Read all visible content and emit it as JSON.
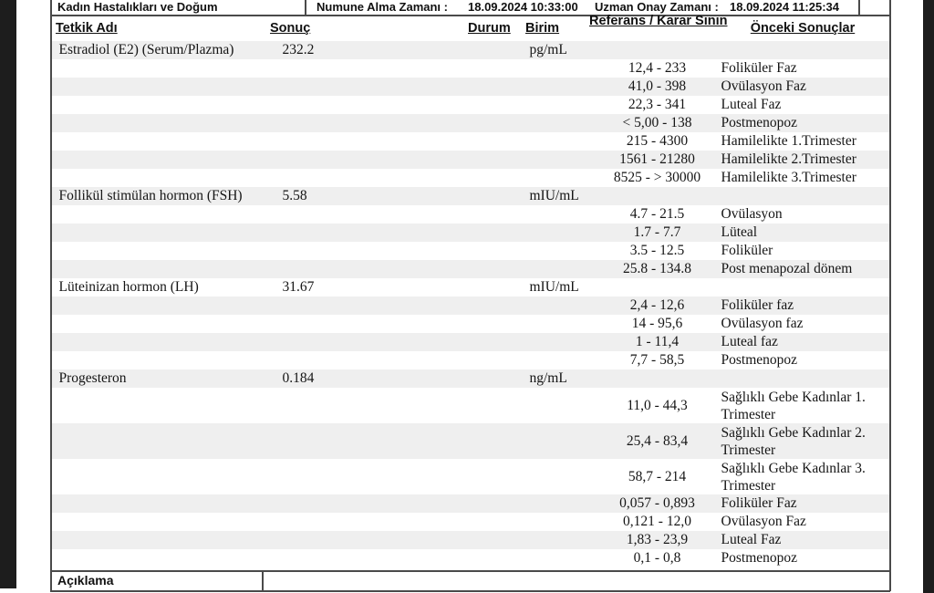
{
  "top_bar": {
    "department": "Kadın Hastalıkları ve Doğum",
    "sample_time_label": "Numune Alma Zamanı :",
    "sample_time": "18.09.2024 10:33:00",
    "approval_time_label": "Uzman Onay Zamanı :",
    "approval_time": "18.09.2024 11:25:34"
  },
  "columns": {
    "test_name": "Tetkik Adı",
    "result": "Sonuç",
    "status": "Durum",
    "unit": "Birim",
    "reference": "Referans / Karar Sının",
    "previous": "Önceki Sonuçlar"
  },
  "tests": [
    {
      "name": "Estradiol (E2) (Serum/Plazma)",
      "result": "232.2",
      "unit": "pg/mL",
      "references": [
        {
          "range": "12,4 - 233",
          "label": "Foliküler Faz"
        },
        {
          "range": "41,0 - 398",
          "label": "Ovülasyon Faz"
        },
        {
          "range": "22,3 - 341",
          "label": "Luteal Faz"
        },
        {
          "range": "< 5,00 - 138",
          "label": "Postmenopoz"
        },
        {
          "range": "215 - 4300",
          "label": "Hamilelikte 1.Trimester"
        },
        {
          "range": "1561 - 21280",
          "label": "Hamilelikte 2.Trimester"
        },
        {
          "range": "8525 - > 30000",
          "label": "Hamilelikte 3.Trimester"
        }
      ]
    },
    {
      "name": "Follikül stimülan hormon (FSH)",
      "result": "5.58",
      "unit": "mIU/mL",
      "references": [
        {
          "range": "4.7 - 21.5",
          "label": "Ovülasyon"
        },
        {
          "range": "1.7 - 7.7",
          "label": "Lüteal"
        },
        {
          "range": "3.5 - 12.5",
          "label": "Foliküler"
        },
        {
          "range": "25.8 - 134.8",
          "label": "Post menapozal dönem"
        }
      ]
    },
    {
      "name": "Lüteinizan hormon (LH)",
      "result": "31.67",
      "unit": "mIU/mL",
      "references": [
        {
          "range": "2,4 - 12,6",
          "label": "Foliküler faz"
        },
        {
          "range": "14 - 95,6",
          "label": "Ovülasyon faz"
        },
        {
          "range": "1 - 11,4",
          "label": "Luteal faz"
        },
        {
          "range": "7,7 - 58,5",
          "label": "Postmenopoz"
        }
      ]
    },
    {
      "name": "Progesteron",
      "result": "0.184",
      "unit": "ng/mL",
      "references": [
        {
          "range": "11,0 - 44,3",
          "label": "Sağlıklı Gebe Kadınlar 1. Trimester"
        },
        {
          "range": "25,4 - 83,4",
          "label": "Sağlıklı Gebe Kadınlar 2. Trimester"
        },
        {
          "range": "58,7 - 214",
          "label": "Sağlıklı Gebe Kadınlar 3. Trimester"
        },
        {
          "range": "0,057 - 0,893",
          "label": "Foliküler Faz"
        },
        {
          "range": "0,121 - 12,0",
          "label": "Ovülasyon Faz"
        },
        {
          "range": "1,83 - 23,9",
          "label": "Luteal Faz"
        },
        {
          "range": "0,1 - 0,8",
          "label": "Postmenopoz"
        }
      ]
    }
  ],
  "footer": {
    "label": "Açıklama"
  }
}
